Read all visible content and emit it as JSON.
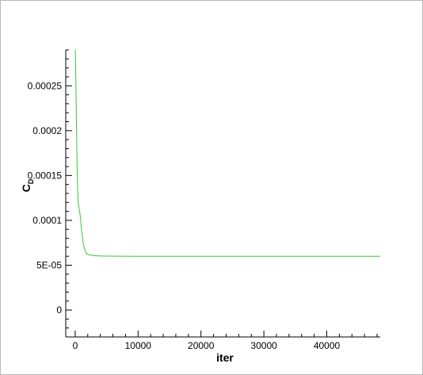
{
  "chart_data": {
    "type": "line",
    "xlabel": "iter",
    "ylabel": "C",
    "ylabel_sub": "D",
    "xlim": [
      -1500,
      48500
    ],
    "ylim": [
      -3e-05,
      0.00029
    ],
    "xticks": [
      0,
      10000,
      20000,
      30000,
      40000
    ],
    "xtick_labels": [
      "0",
      "10000",
      "20000",
      "30000",
      "40000"
    ],
    "yticks": [
      0,
      5e-05,
      0.0001,
      0.00015,
      0.0002,
      0.00025
    ],
    "ytick_labels": [
      "0",
      "5E-05",
      "0.0001",
      "0.00015",
      "0.0002",
      "0.00025"
    ],
    "grid": false,
    "legend": "none",
    "series": [
      {
        "color": "#33cc33",
        "x": [
          30,
          100,
          200,
          300,
          450,
          600,
          800,
          1000,
          1200,
          1400,
          1700,
          2000,
          2500,
          3000,
          4000,
          5000,
          7000,
          10000,
          20000,
          30000,
          40000,
          48500
        ],
        "y": [
          0.00029,
          0.00026,
          0.00021,
          0.00016,
          0.00012,
          0.000115,
          0.000105,
          9e-05,
          7.8e-05,
          7e-05,
          6.4e-05,
          6.2e-05,
          6.12e-05,
          6.06e-05,
          6.03e-05,
          6.02e-05,
          6.01e-05,
          6e-05,
          6e-05,
          6e-05,
          6e-05,
          6e-05
        ]
      }
    ]
  }
}
